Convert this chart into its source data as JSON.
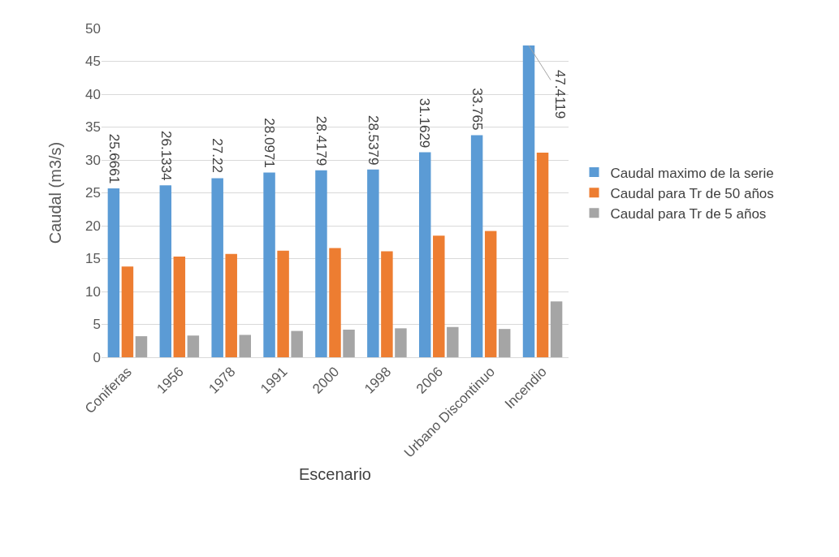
{
  "chart_data": {
    "type": "bar",
    "xlabel": "Escenario",
    "ylabel": "Caudal (m3/s)",
    "categories": [
      "Coniferas",
      "1956",
      "1978",
      "1991",
      "2000",
      "1998",
      "2006",
      "Urbano Discontinuo",
      "Incendio"
    ],
    "series": [
      {
        "name": "Caudal maximo de la serie",
        "color": "#5b9bd5",
        "values": [
          25.6661,
          26.1334,
          27.22,
          28.0971,
          28.4179,
          28.5379,
          31.1629,
          33.765,
          47.4119
        ],
        "value_labels": [
          "25.6661",
          "26.1334",
          "27.22",
          "28.0971",
          "28.4179",
          "28.5379",
          "31.1629",
          "33.765",
          "47.4119"
        ]
      },
      {
        "name": "Caudal para Tr de 50 años",
        "color": "#ed7d31",
        "values": [
          13.8,
          15.3,
          15.7,
          16.2,
          16.6,
          16.1,
          18.5,
          19.2,
          31.1
        ]
      },
      {
        "name": "Caudal para Tr de 5 años",
        "color": "#a5a5a5",
        "values": [
          3.2,
          3.3,
          3.4,
          4.0,
          4.2,
          4.4,
          4.6,
          4.3,
          8.5
        ]
      }
    ],
    "ylim": [
      0,
      50
    ],
    "yticks": [
      0,
      5,
      10,
      15,
      20,
      25,
      30,
      35,
      40,
      45,
      50
    ],
    "grid": "y",
    "legend": "right"
  }
}
